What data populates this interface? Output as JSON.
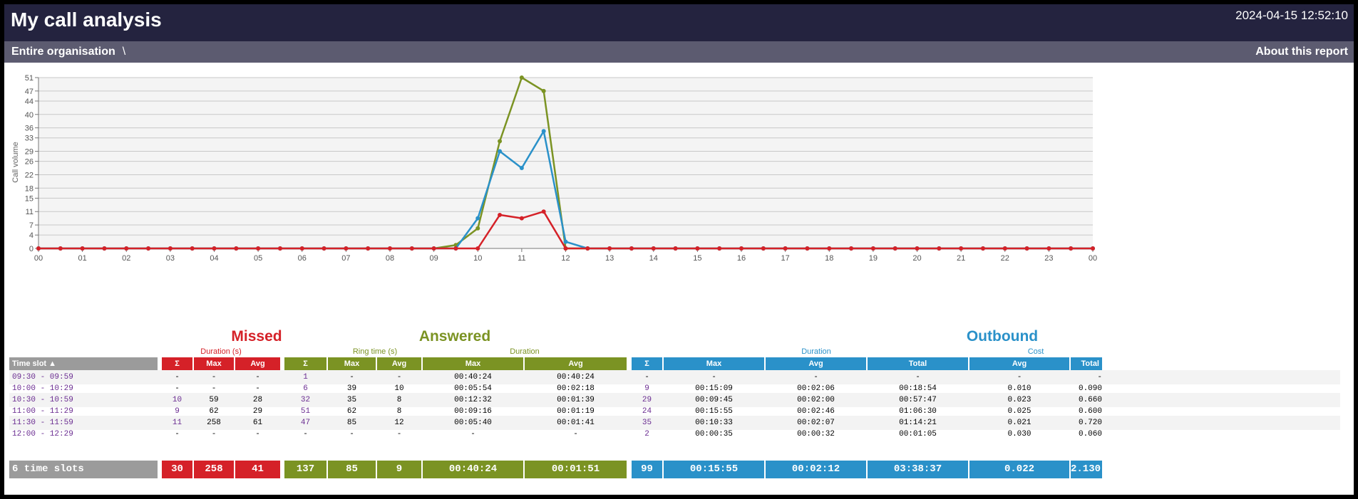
{
  "header": {
    "title": "My call analysis",
    "timestamp": "2024-04-15 12:52:10"
  },
  "nav": {
    "breadcrumb": "Entire organisation",
    "separator": "\\",
    "about": "About this report"
  },
  "colors": {
    "missed": "#d52128",
    "answered": "#7b9323",
    "outbound": "#2a91c9",
    "neutral": "#9b9b9b",
    "header_bg": "#24233f"
  },
  "chart_data": {
    "type": "line",
    "ylabel": "Call volume",
    "ylim": [
      0,
      51
    ],
    "yticks": [
      0,
      4,
      7,
      11,
      15,
      18,
      22,
      26,
      29,
      33,
      36,
      40,
      44,
      47,
      51
    ],
    "xticks": [
      "00",
      "01",
      "02",
      "03",
      "04",
      "05",
      "06",
      "07",
      "08",
      "09",
      "10",
      "11",
      "12",
      "13",
      "14",
      "15",
      "16",
      "17",
      "18",
      "19",
      "20",
      "21",
      "22",
      "23",
      "00"
    ],
    "x_unit": "half-hour slot index (0 = 00:00, 48 = 00:00 next day)",
    "grid": true,
    "series": [
      {
        "key": "answered",
        "color": "#7b9323",
        "values": [
          0,
          0,
          0,
          0,
          0,
          0,
          0,
          0,
          0,
          0,
          0,
          0,
          0,
          0,
          0,
          0,
          0,
          0,
          0,
          1,
          6,
          32,
          51,
          47,
          0,
          0,
          0,
          0,
          0,
          0,
          0,
          0,
          0,
          0,
          0,
          0,
          0,
          0,
          0,
          0,
          0,
          0,
          0,
          0,
          0,
          0,
          0,
          0,
          0
        ]
      },
      {
        "key": "outbound",
        "color": "#2a91c9",
        "values": [
          0,
          0,
          0,
          0,
          0,
          0,
          0,
          0,
          0,
          0,
          0,
          0,
          0,
          0,
          0,
          0,
          0,
          0,
          0,
          0,
          9,
          29,
          24,
          35,
          2,
          0,
          0,
          0,
          0,
          0,
          0,
          0,
          0,
          0,
          0,
          0,
          0,
          0,
          0,
          0,
          0,
          0,
          0,
          0,
          0,
          0,
          0,
          0,
          0
        ]
      },
      {
        "key": "missed",
        "color": "#d52128",
        "values": [
          0,
          0,
          0,
          0,
          0,
          0,
          0,
          0,
          0,
          0,
          0,
          0,
          0,
          0,
          0,
          0,
          0,
          0,
          0,
          0,
          0,
          10,
          9,
          11,
          0,
          0,
          0,
          0,
          0,
          0,
          0,
          0,
          0,
          0,
          0,
          0,
          0,
          0,
          0,
          0,
          0,
          0,
          0,
          0,
          0,
          0,
          0,
          0,
          0
        ]
      }
    ]
  },
  "table": {
    "groups": {
      "missed": "Missed",
      "answered": "Answered",
      "outbound": "Outbound"
    },
    "sublabels": {
      "missed_duration": "Duration (s)",
      "answered_ring": "Ring time (s)",
      "answered_duration": "Duration",
      "outbound_duration": "Duration",
      "outbound_cost": "Cost"
    },
    "headers": [
      "Time slot ▲",
      "Σ",
      "Max",
      "Avg",
      "Σ",
      "Max",
      "Avg",
      "Max",
      "Avg",
      "Σ",
      "Max",
      "Avg",
      "Total",
      "Avg",
      "Total"
    ],
    "rows": [
      [
        "09:30 - 09:59",
        "-",
        "-",
        "-",
        "1",
        "-",
        "-",
        "00:40:24",
        "00:40:24",
        "-",
        "-",
        "-",
        "-",
        "-",
        "-"
      ],
      [
        "10:00 - 10:29",
        "-",
        "-",
        "-",
        "6",
        "39",
        "10",
        "00:05:54",
        "00:02:18",
        "9",
        "00:15:09",
        "00:02:06",
        "00:18:54",
        "0.010",
        "0.090"
      ],
      [
        "10:30 - 10:59",
        "10",
        "59",
        "28",
        "32",
        "35",
        "8",
        "00:12:32",
        "00:01:39",
        "29",
        "00:09:45",
        "00:02:00",
        "00:57:47",
        "0.023",
        "0.660"
      ],
      [
        "11:00 - 11:29",
        "9",
        "62",
        "29",
        "51",
        "62",
        "8",
        "00:09:16",
        "00:01:19",
        "24",
        "00:15:55",
        "00:02:46",
        "01:06:30",
        "0.025",
        "0.600"
      ],
      [
        "11:30 - 11:59",
        "11",
        "258",
        "61",
        "47",
        "85",
        "12",
        "00:05:40",
        "00:01:41",
        "35",
        "00:10:33",
        "00:02:07",
        "01:14:21",
        "0.021",
        "0.720"
      ],
      [
        "12:00 - 12:29",
        "-",
        "-",
        "-",
        "-",
        "-",
        "-",
        "-",
        "-",
        "2",
        "00:00:35",
        "00:00:32",
        "00:01:05",
        "0.030",
        "0.060"
      ]
    ],
    "totals": [
      "6 time slots",
      "30",
      "258",
      "41",
      "137",
      "85",
      "9",
      "00:40:24",
      "00:01:51",
      "99",
      "00:15:55",
      "00:02:12",
      "03:38:37",
      "0.022",
      "2.130"
    ]
  }
}
